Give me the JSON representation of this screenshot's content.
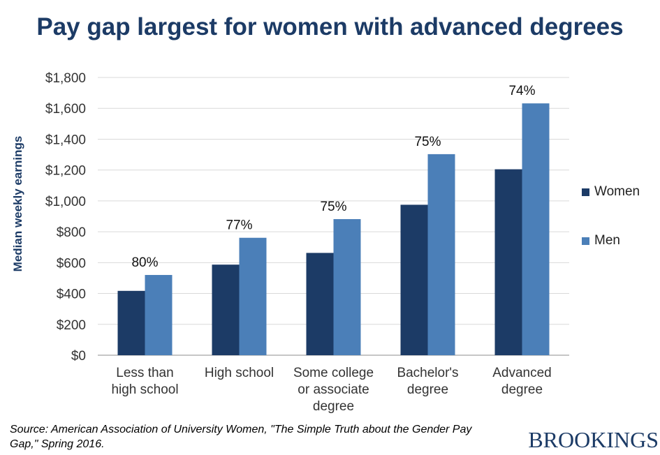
{
  "title": "Pay gap largest for women with advanced degrees",
  "ylabel": "Median weekly earnings",
  "legend": [
    {
      "name": "Women",
      "color": "#1c3b66"
    },
    {
      "name": "Men",
      "color": "#4b7fb8"
    }
  ],
  "source": "Source: American Association of University Women, \"The Simple Truth about the Gender Pay Gap,\" Spring 2016.",
  "brand": "BROOKINGS",
  "chart_data": {
    "type": "bar",
    "categories": [
      [
        "Less than",
        "high school"
      ],
      [
        "High school"
      ],
      [
        "Some college",
        "or associate",
        "degree"
      ],
      [
        "Bachelor's",
        "degree"
      ],
      [
        "Advanced",
        "degree"
      ]
    ],
    "series": [
      {
        "name": "Women",
        "values": [
          417,
          587,
          663,
          975,
          1205
        ],
        "color": "#1c3b66"
      },
      {
        "name": "Men",
        "values": [
          520,
          761,
          882,
          1303,
          1632
        ],
        "color": "#4b7fb8"
      }
    ],
    "annotations": [
      "80%",
      "77%",
      "75%",
      "75%",
      "74%"
    ],
    "yticks": [
      "$0",
      "$200",
      "$400",
      "$600",
      "$800",
      "$1,000",
      "$1,200",
      "$1,400",
      "$1,600",
      "$1,800"
    ],
    "ylim": [
      0,
      1800
    ],
    "grid": true,
    "legend_position": "right"
  }
}
